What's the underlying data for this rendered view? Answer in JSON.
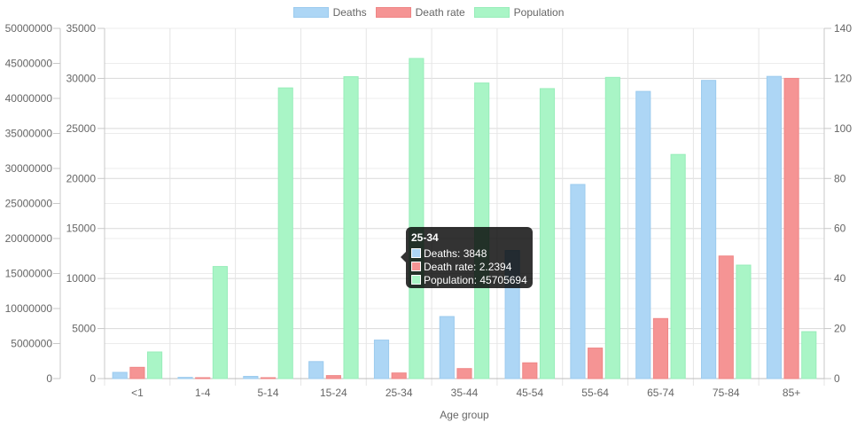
{
  "legend": [
    {
      "label": "Deaths",
      "fill": "#add6f5",
      "stroke": "#9ccbee"
    },
    {
      "label": "Death rate",
      "fill": "#f59494",
      "stroke": "#ef8686"
    },
    {
      "label": "Population",
      "fill": "#a9f5c6",
      "stroke": "#98edba"
    }
  ],
  "tooltip": {
    "title": "25-34",
    "rows": [
      {
        "text": "Deaths: 3848",
        "color": "#add6f5"
      },
      {
        "text": "Death rate: 2.2394",
        "color": "#f59494"
      },
      {
        "text": "Population: 45705694",
        "color": "#a9f5c6"
      }
    ]
  },
  "chart_data": {
    "type": "bar",
    "xlabel": "Age group",
    "categories": [
      "<1",
      "1-4",
      "5-14",
      "15-24",
      "25-34",
      "35-44",
      "45-54",
      "55-64",
      "65-74",
      "75-84",
      "85+"
    ],
    "series": [
      {
        "name": "Deaths",
        "axis": "y-mid",
        "color": "#add6f5",
        "values": [
          620,
          120,
          220,
          1700,
          3848,
          6200,
          12800,
          19400,
          28700,
          29800,
          30200
        ]
      },
      {
        "name": "Death rate",
        "axis": "y-right",
        "color": "#f59494",
        "values": [
          4.5,
          0.3,
          0.2,
          1.2,
          2.2394,
          4.0,
          6.3,
          12.2,
          24.0,
          49.0,
          120
        ]
      },
      {
        "name": "Population",
        "axis": "y-left",
        "color": "#a9f5c6",
        "values": [
          3800000,
          16000000,
          41500000,
          43100000,
          45705694,
          42200000,
          41400000,
          43000000,
          32000000,
          16200000,
          6700000
        ]
      }
    ],
    "axes": {
      "y_left": {
        "ylim": [
          0,
          50000000
        ],
        "ticks": [
          "0",
          "5000000",
          "10000000",
          "15000000",
          "20000000",
          "25000000",
          "30000000",
          "35000000",
          "40000000",
          "45000000",
          "50000000"
        ]
      },
      "y_mid": {
        "ylim": [
          0,
          35000
        ],
        "ticks": [
          "0",
          "5000",
          "10000",
          "15000",
          "20000",
          "25000",
          "30000",
          "35000"
        ]
      },
      "y_right": {
        "ylim": [
          0,
          140
        ],
        "ticks": [
          "0",
          "20",
          "40",
          "60",
          "80",
          "100",
          "120",
          "140"
        ]
      }
    },
    "grid": true,
    "legend_position": "top-center"
  }
}
